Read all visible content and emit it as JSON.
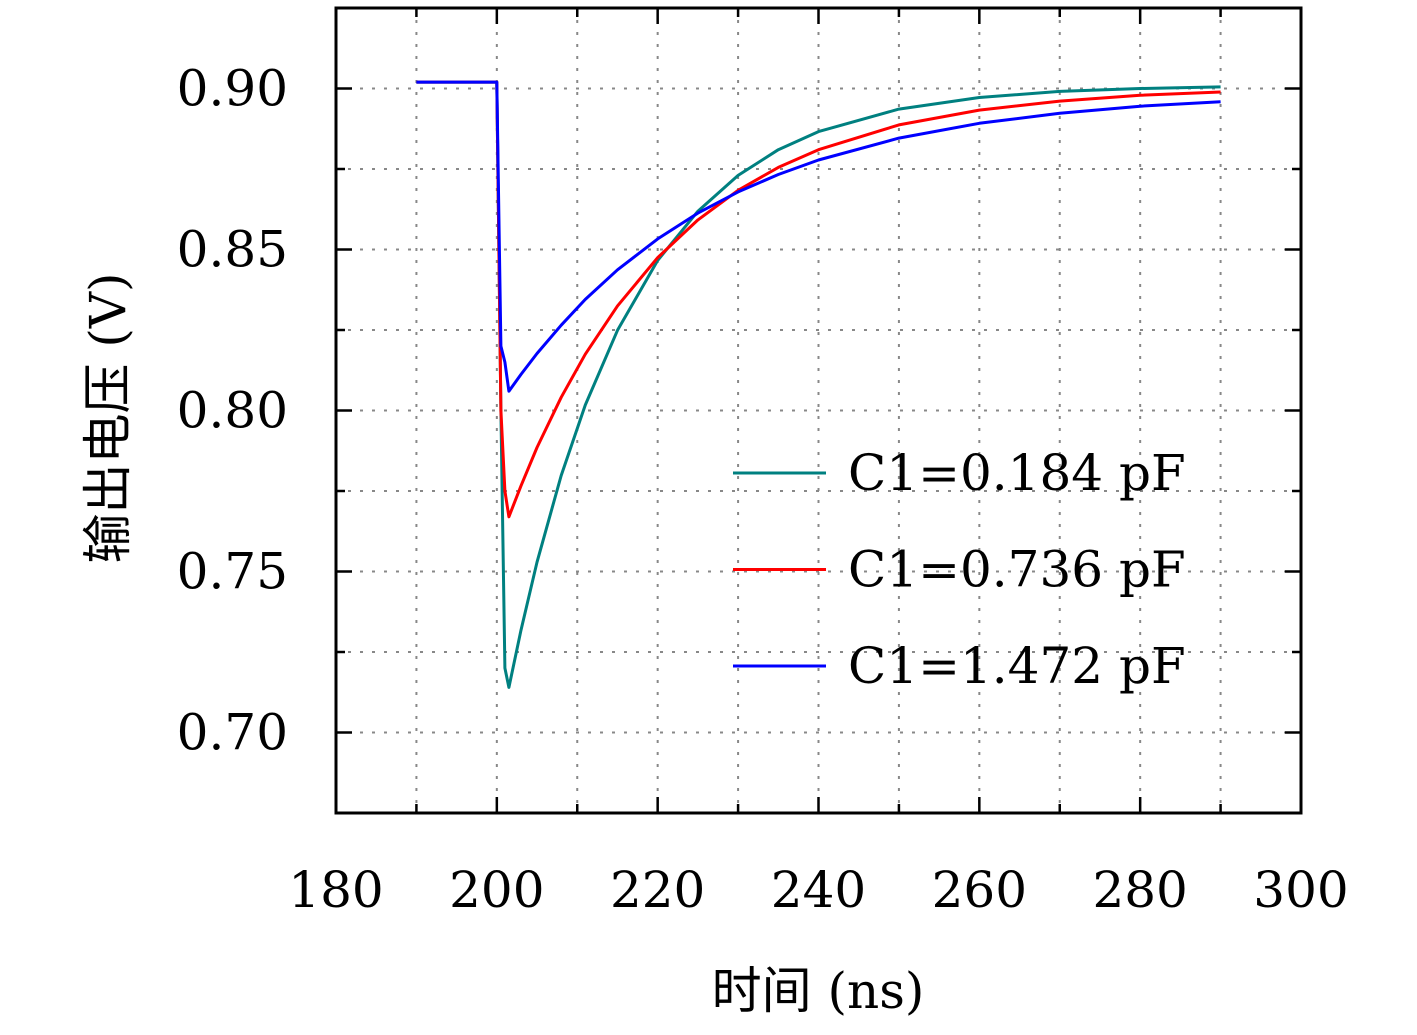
{
  "chart_data": {
    "type": "line",
    "title": "",
    "xlabel": "时间 (ns)",
    "ylabel": "输出电压 (V)",
    "xlim": [
      180,
      300
    ],
    "ylim": [
      0.675,
      0.925
    ],
    "xticks": [
      180,
      200,
      220,
      240,
      260,
      280,
      300
    ],
    "xtick_labels": [
      "180",
      "200",
      "220",
      "240",
      "260",
      "280",
      "300"
    ],
    "yticks": [
      0.7,
      0.75,
      0.8,
      0.85,
      0.9
    ],
    "ytick_labels": [
      "0.70",
      "0.75",
      "0.80",
      "0.85",
      "0.90"
    ],
    "grid": true,
    "legend_position": "center-right",
    "x": [
      190,
      199.9,
      200,
      200.5,
      201,
      201.5,
      203,
      205,
      208,
      211,
      215,
      220,
      225,
      230,
      235,
      240,
      250,
      260,
      270,
      280,
      290
    ],
    "series": [
      {
        "name": "C1=0.184 pF",
        "color": "#008080",
        "values": [
          0.902,
          0.902,
          0.902,
          0.8,
          0.72,
          0.714,
          0.7318,
          0.7529,
          0.7798,
          0.8017,
          0.8249,
          0.8466,
          0.8619,
          0.873,
          0.881,
          0.8866,
          0.8936,
          0.8972,
          0.8991,
          0.9,
          0.9005
        ]
      },
      {
        "name": "C1=0.736 pF",
        "color": "#ff0000",
        "values": [
          0.902,
          0.902,
          0.902,
          0.8,
          0.775,
          0.767,
          0.7766,
          0.7885,
          0.8041,
          0.8175,
          0.8325,
          0.8475,
          0.8592,
          0.8684,
          0.8755,
          0.881,
          0.8887,
          0.8933,
          0.8961,
          0.8979,
          0.8989
        ]
      },
      {
        "name": "C1=1.472 pF",
        "color": "#0000ff",
        "values": [
          0.902,
          0.902,
          0.902,
          0.82,
          0.815,
          0.806,
          0.8112,
          0.8177,
          0.8265,
          0.8345,
          0.8437,
          0.8533,
          0.8613,
          0.8679,
          0.8733,
          0.8778,
          0.8846,
          0.8892,
          0.8923,
          0.8945,
          0.8959
        ]
      }
    ]
  }
}
